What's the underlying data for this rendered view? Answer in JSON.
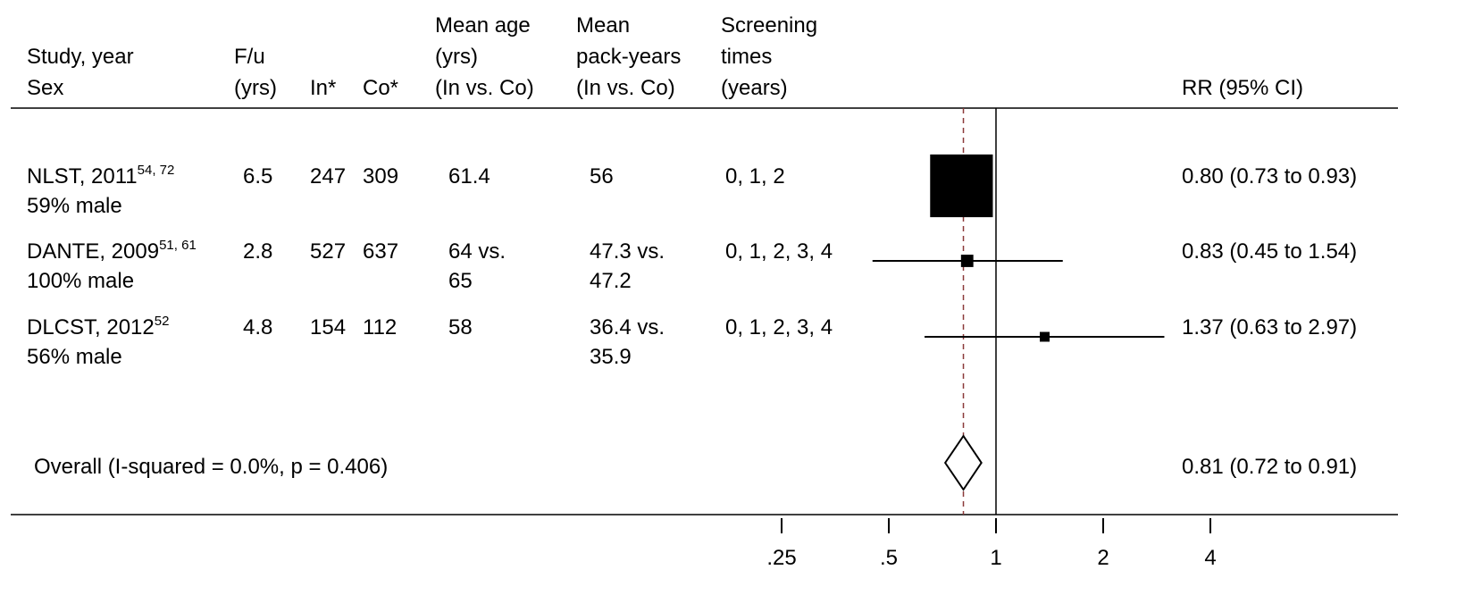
{
  "chart_data": {
    "type": "forest",
    "headers": {
      "study": [
        "Study, year",
        "Sex"
      ],
      "fu": [
        "F/u",
        "(yrs)"
      ],
      "in": [
        "In*"
      ],
      "co": [
        "Co*"
      ],
      "age": [
        "Mean age",
        "(yrs)",
        "(In vs. Co)"
      ],
      "pack": [
        "Mean",
        "pack-years",
        "(In vs. Co)"
      ],
      "screening": [
        "Screening",
        "times",
        "(years)"
      ],
      "rr": [
        "RR (95% CI)"
      ]
    },
    "studies": [
      {
        "name": "NLST, 2011",
        "refs": "54, 72",
        "sex": "59% male",
        "fu": 6.5,
        "in": 247,
        "co": 309,
        "age": [
          61.4
        ],
        "pack": [
          56
        ],
        "screening": "0, 1, 2",
        "estimate": 0.8,
        "lower": 0.73,
        "upper": 0.93,
        "rr_label": "0.80 (0.73 to 0.93)"
      },
      {
        "name": "DANTE, 2009",
        "refs": "51, 61",
        "sex": "100% male",
        "fu": 2.8,
        "in": 527,
        "co": 637,
        "age": [
          "64 vs.",
          65
        ],
        "pack": [
          "47.3 vs.",
          47.2
        ],
        "screening": "0, 1, 2, 3, 4",
        "estimate": 0.83,
        "lower": 0.45,
        "upper": 1.54,
        "rr_label": "0.83 (0.45 to 1.54)"
      },
      {
        "name": "DLCST, 2012",
        "refs": "52",
        "sex": "56% male",
        "fu": 4.8,
        "in": 154,
        "co": 112,
        "age": [
          58
        ],
        "pack": [
          "36.4 vs.",
          35.9
        ],
        "screening": "0, 1, 2, 3, 4",
        "estimate": 1.37,
        "lower": 0.63,
        "upper": 2.97,
        "rr_label": "1.37 (0.63 to 2.97)"
      }
    ],
    "overall": {
      "label": "Overall (I-squared = 0.0%, p = 0.406)",
      "estimate": 0.81,
      "lower": 0.72,
      "upper": 0.91,
      "rr_label": "0.81 (0.72 to 0.91)"
    },
    "xscale": "log",
    "xlim": [
      0.25,
      4
    ],
    "xticks": [
      {
        "value": 0.25,
        "label": ".25"
      },
      {
        "value": 0.5,
        "label": ".5"
      },
      1,
      2,
      4
    ],
    "reference_line": 1,
    "color": "#000000",
    "overall_line_color": "#8b3a3a"
  }
}
